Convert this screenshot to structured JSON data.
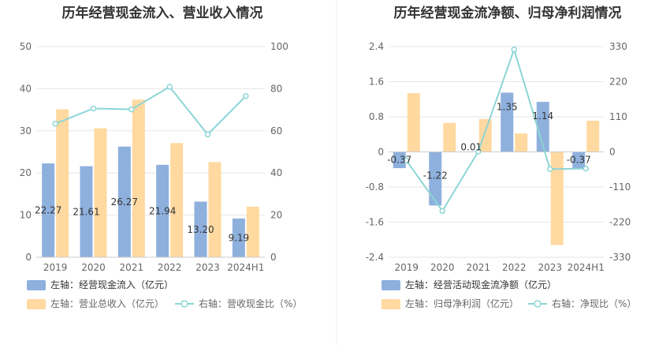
{
  "colors": {
    "bar_blue": "#8eb0dd",
    "bar_orange": "#ffd9a0",
    "line": "#8dd5d5",
    "grid": "#e6e6e6"
  },
  "chart_data": [
    {
      "type": "bar",
      "title": "历年经营现金流入、营业收入情况",
      "categories": [
        "2019",
        "2020",
        "2021",
        "2022",
        "2023",
        "2024H1"
      ],
      "left_axis": {
        "ticks": [
          "0",
          "10",
          "20",
          "30",
          "40",
          "50"
        ],
        "ylim": [
          0,
          50
        ]
      },
      "right_axis": {
        "ticks": [
          "0",
          "20",
          "40",
          "60",
          "80",
          "100"
        ],
        "ylim": [
          0,
          100
        ]
      },
      "series": [
        {
          "name": "左轴：经营现金流入（亿元）",
          "axis": "left",
          "type": "bar",
          "values": [
            22.27,
            21.61,
            26.27,
            21.94,
            13.2,
            9.19
          ],
          "labels": [
            "22.27",
            "21.61",
            "26.27",
            "21.94",
            "13.20",
            "9.19"
          ]
        },
        {
          "name": "左轴：营业总收入（亿元）",
          "axis": "left",
          "type": "bar",
          "values": [
            35.1,
            30.6,
            37.4,
            27.1,
            22.6,
            12.0
          ]
        },
        {
          "name": "右轴：营收现金比（%）",
          "axis": "right",
          "type": "line",
          "values": [
            63.4,
            70.6,
            70.2,
            80.9,
            58.3,
            76.5
          ]
        }
      ]
    },
    {
      "type": "bar",
      "title": "历年经营现金流净额、归母净利润情况",
      "categories": [
        "2019",
        "2020",
        "2021",
        "2022",
        "2023",
        "2024H1"
      ],
      "left_axis": {
        "ticks": [
          "-2.4",
          "-1.6",
          "-0.8",
          "0",
          "0.8",
          "1.6",
          "2.4"
        ],
        "ylim": [
          -2.4,
          2.4
        ]
      },
      "right_axis": {
        "ticks": [
          "-330",
          "-220",
          "-110",
          "0",
          "110",
          "220",
          "330"
        ],
        "ylim": [
          -330,
          330
        ]
      },
      "series": [
        {
          "name": "左轴：经营活动现金流净额（亿元）",
          "axis": "left",
          "type": "bar",
          "values": [
            -0.37,
            -1.22,
            0.01,
            1.35,
            1.14,
            -0.37
          ],
          "labels": [
            "-0.37",
            "-1.22",
            "0.01",
            "1.35",
            "1.14",
            "-0.37"
          ]
        },
        {
          "name": "左轴：归母净利润（亿元）",
          "axis": "left",
          "type": "bar",
          "values": [
            1.34,
            0.66,
            0.75,
            0.42,
            -2.12,
            0.71
          ]
        },
        {
          "name": "右轴：净现比（%）",
          "axis": "right",
          "type": "line",
          "values": [
            -27.6,
            -185,
            1.3,
            321,
            -53.8,
            -52.1
          ]
        }
      ]
    }
  ]
}
